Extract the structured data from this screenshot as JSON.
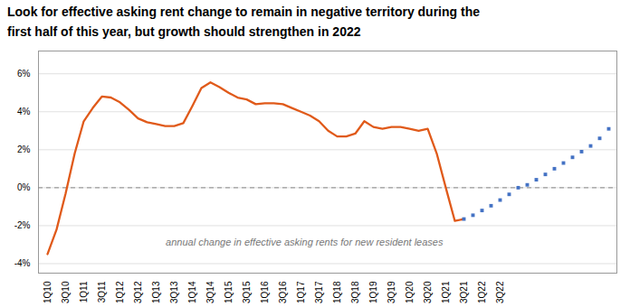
{
  "chart_data": {
    "type": "line",
    "title": "Look for effective asking rent change to remain in negative territory during the",
    "subtitle": "first half of this year, but growth should strengthen in 2022",
    "annotation": "annual change in effective asking rents for new resident leases",
    "categories": [
      "1Q10",
      null,
      "3Q10",
      null,
      "1Q11",
      null,
      "3Q11",
      null,
      "1Q12",
      null,
      "3Q12",
      null,
      "1Q13",
      null,
      "3Q13",
      null,
      "1Q14",
      null,
      "3Q14",
      null,
      "1Q15",
      null,
      "3Q15",
      null,
      "1Q16",
      null,
      "3Q16",
      null,
      "1Q17",
      null,
      "3Q17",
      null,
      "1Q18",
      null,
      "3Q18",
      null,
      "1Q19",
      null,
      "3Q19",
      null,
      "1Q20",
      null,
      "3Q20",
      null,
      "1Q21",
      null,
      "3Q21",
      null,
      "1Q22",
      null,
      "3Q22",
      null,
      null,
      null,
      null,
      null,
      null,
      null,
      null,
      null,
      null,
      null,
      null
    ],
    "series": [
      {
        "type": "line",
        "color": "#e05a1a",
        "line_style": "solid",
        "values": [
          -3.5,
          -2.2,
          -0.3,
          1.8,
          3.5,
          4.2,
          4.8,
          4.75,
          4.5,
          4.1,
          3.65,
          3.45,
          3.35,
          3.25,
          3.25,
          3.4,
          4.3,
          5.25,
          5.55,
          5.3,
          5.0,
          4.75,
          4.65,
          4.4,
          4.45,
          4.45,
          4.4,
          4.2,
          4.0,
          3.8,
          3.5,
          3.0,
          2.7,
          2.7,
          2.85,
          3.5,
          3.2,
          3.1,
          3.2,
          3.2,
          3.1,
          3.0,
          3.1,
          1.8,
          0.0,
          -1.75,
          -1.65,
          null,
          null,
          null,
          null,
          null,
          null,
          null,
          null,
          null,
          null,
          null,
          null,
          null,
          null,
          null,
          null
        ]
      },
      {
        "type": "scatter",
        "color": "#4472c4",
        "marker": "square",
        "values": [
          null,
          null,
          null,
          null,
          null,
          null,
          null,
          null,
          null,
          null,
          null,
          null,
          null,
          null,
          null,
          null,
          null,
          null,
          null,
          null,
          null,
          null,
          null,
          null,
          null,
          null,
          null,
          null,
          null,
          null,
          null,
          null,
          null,
          null,
          null,
          null,
          null,
          null,
          null,
          null,
          null,
          null,
          null,
          null,
          null,
          null,
          -1.65,
          -1.45,
          -1.2,
          -0.95,
          -0.65,
          -0.35,
          0.0,
          0.15,
          0.42,
          0.7,
          1.0,
          1.3,
          1.6,
          1.9,
          2.2,
          2.6,
          3.1
        ]
      }
    ],
    "ylim": [
      -4.5,
      7.2
    ],
    "yticks": [
      {
        "value": -4,
        "label": "-4%"
      },
      {
        "value": -2,
        "label": "-2%"
      },
      {
        "value": 0,
        "label": "0%"
      },
      {
        "value": 2,
        "label": "2%"
      },
      {
        "value": 4,
        "label": "4%"
      },
      {
        "value": 6,
        "label": "6%"
      }
    ],
    "grid": true
  }
}
